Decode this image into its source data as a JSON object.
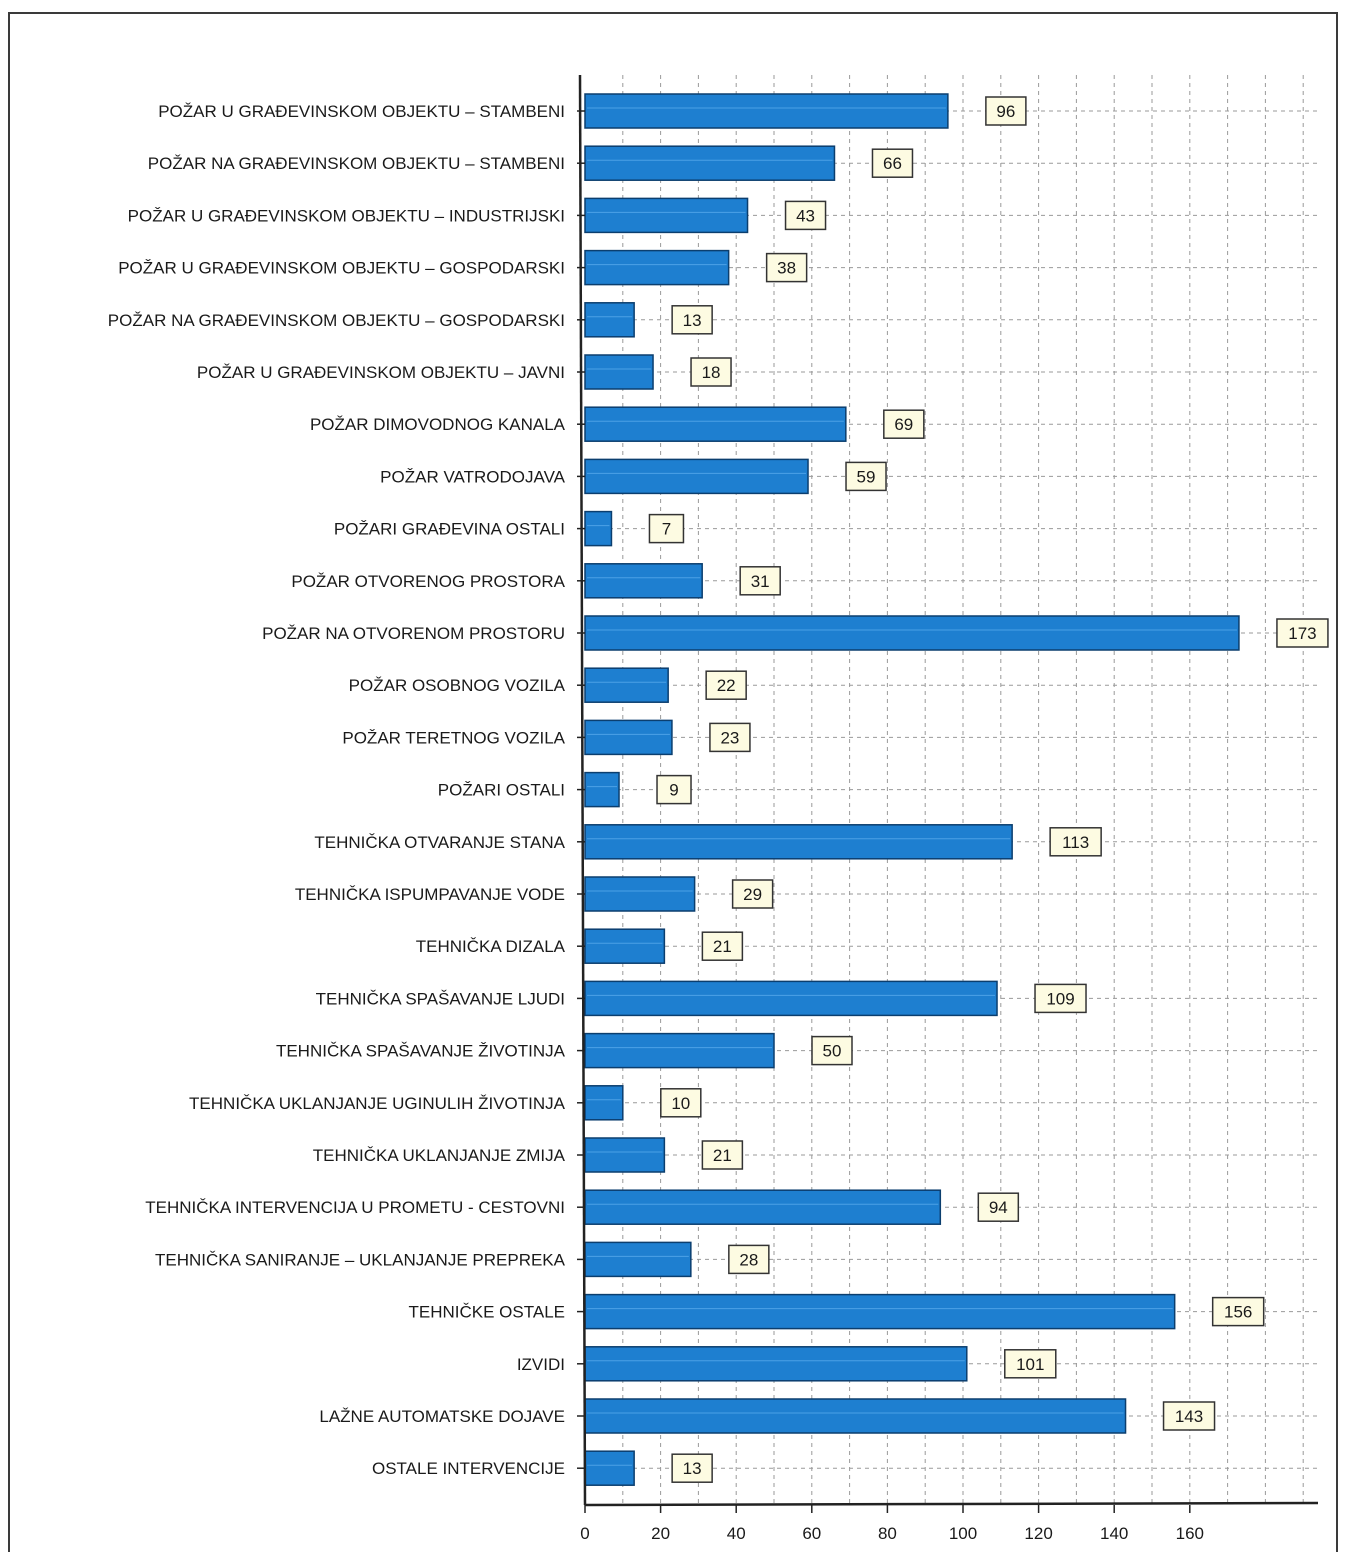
{
  "chart_data": {
    "type": "bar",
    "orientation": "horizontal",
    "title": "",
    "xlabel": "",
    "ylabel": "",
    "xlim": [
      0,
      190
    ],
    "x_ticks": [
      0,
      20,
      40,
      60,
      80,
      100,
      120,
      140,
      160
    ],
    "grid": true,
    "legend": "none",
    "colors": {
      "bar": "#1e7fd0",
      "bar_border": "#0b3e6e",
      "label_box": "#fdfbe2",
      "label_border": "#333333",
      "grid": "#9a9a9a",
      "axis": "#222222"
    },
    "categories": [
      "POŽAR U GRAĐEVINSKOM OBJEKTU – STAMBENI",
      "POŽAR NA GRAĐEVINSKOM OBJEKTU – STAMBENI",
      "POŽAR U GRAĐEVINSKOM OBJEKTU – INDUSTRIJSKI",
      "POŽAR U GRAĐEVINSKOM OBJEKTU – GOSPODARSKI",
      "POŽAR NA GRAĐEVINSKOM OBJEKTU – GOSPODARSKI",
      "POŽAR U GRAĐEVINSKOM OBJEKTU – JAVNI",
      "POŽAR DIMOVODNOG KANALA",
      "POŽAR VATRODOJAVA",
      "POŽARI GRAĐEVINA OSTALI",
      "POŽAR OTVORENOG PROSTORA",
      "POŽAR NA OTVORENOM PROSTORU",
      "POŽAR OSOBNOG VOZILA",
      "POŽAR TERETNOG VOZILA",
      "POŽARI OSTALI",
      "TEHNIČKA OTVARANJE STANA",
      "TEHNIČKA ISPUMPAVANJE VODE",
      "TEHNIČKA DIZALA",
      "TEHNIČKA SPAŠAVANJE LJUDI",
      "TEHNIČKA SPAŠAVANJE ŽIVOTINJA",
      "TEHNIČKA UKLANJANJE UGINULIH ŽIVOTINJA",
      "TEHNIČKA UKLANJANJE ZMIJA",
      "TEHNIČKA INTERVENCIJA U PROMETU - CESTOVNI",
      "TEHNIČKA SANIRANJE – UKLANJANJE PREPREKA",
      "TEHNIČKE OSTALE",
      "IZVIDI",
      "LAŽNE AUTOMATSKE DOJAVE",
      "OSTALE INTERVENCIJE"
    ],
    "values": [
      96,
      66,
      43,
      38,
      13,
      18,
      69,
      59,
      7,
      31,
      173,
      22,
      23,
      9,
      113,
      29,
      21,
      109,
      50,
      10,
      21,
      94,
      28,
      156,
      101,
      143,
      13
    ]
  }
}
